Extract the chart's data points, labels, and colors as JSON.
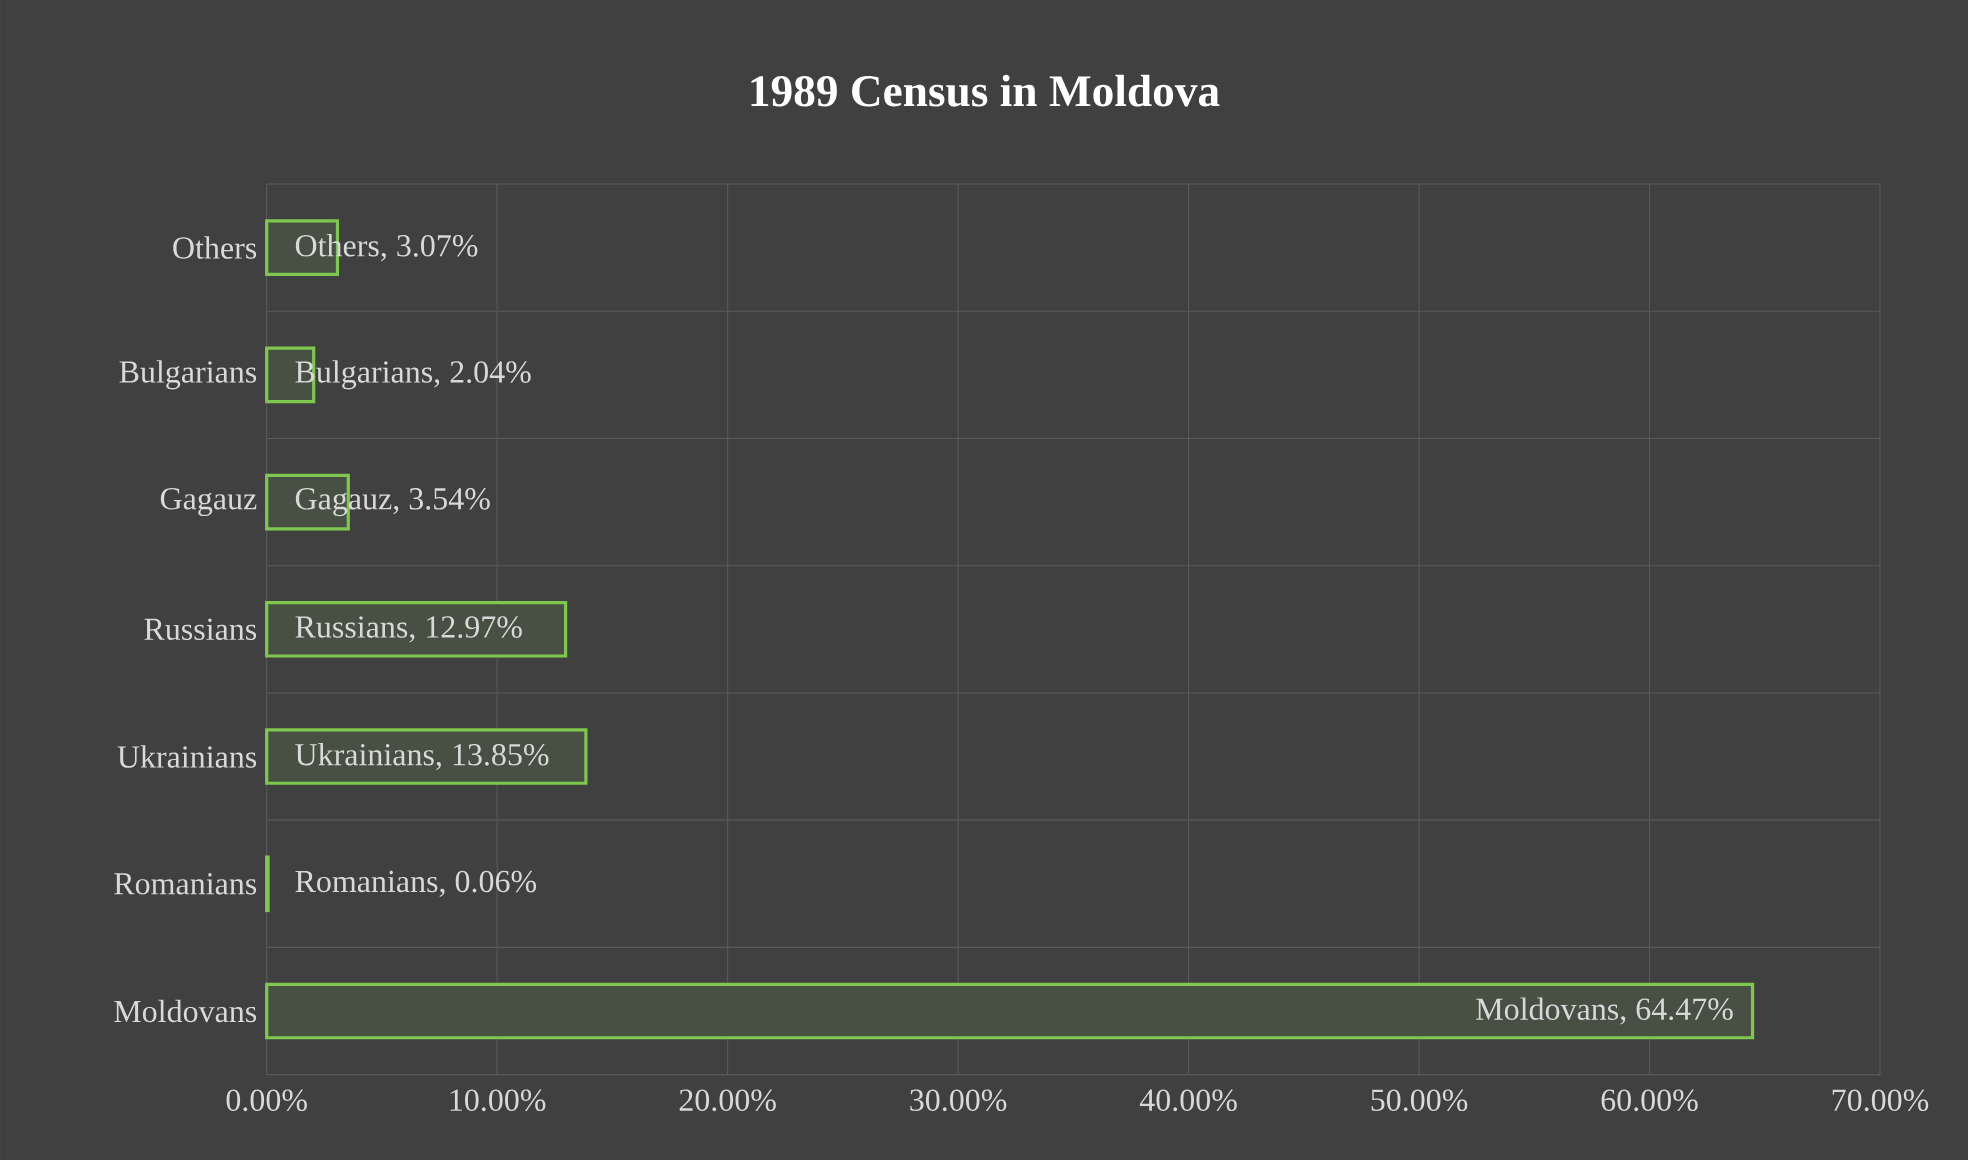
{
  "chart_data": {
    "type": "bar",
    "orientation": "horizontal",
    "title": "1989 Census in Moldova",
    "categories": [
      "Others",
      "Bulgarians",
      "Gagauz",
      "Russians",
      "Ukrainians",
      "Romanians",
      "Moldovans"
    ],
    "values": [
      3.07,
      2.04,
      3.54,
      12.97,
      13.85,
      0.06,
      64.47
    ],
    "value_labels": [
      "Others, 3.07%",
      "Bulgarians, 2.04%",
      "Gagauz, 3.54%",
      "Russians, 12.97%",
      "Ukrainians, 13.85%",
      "Romanians, 0.06%",
      "Moldovans, 64.47%"
    ],
    "color": "#7ec850",
    "xlim": [
      0,
      70
    ],
    "xticks": [
      {
        "value": 0,
        "label": "0.00%"
      },
      {
        "value": 10,
        "label": "10.00%"
      },
      {
        "value": 20,
        "label": "20.00%"
      },
      {
        "value": 30,
        "label": "30.00%"
      },
      {
        "value": 40,
        "label": "40.00%"
      },
      {
        "value": 50,
        "label": "50.00%"
      },
      {
        "value": 60,
        "label": "60.00%"
      },
      {
        "value": 70,
        "label": "70.00%"
      }
    ],
    "grid": true
  }
}
